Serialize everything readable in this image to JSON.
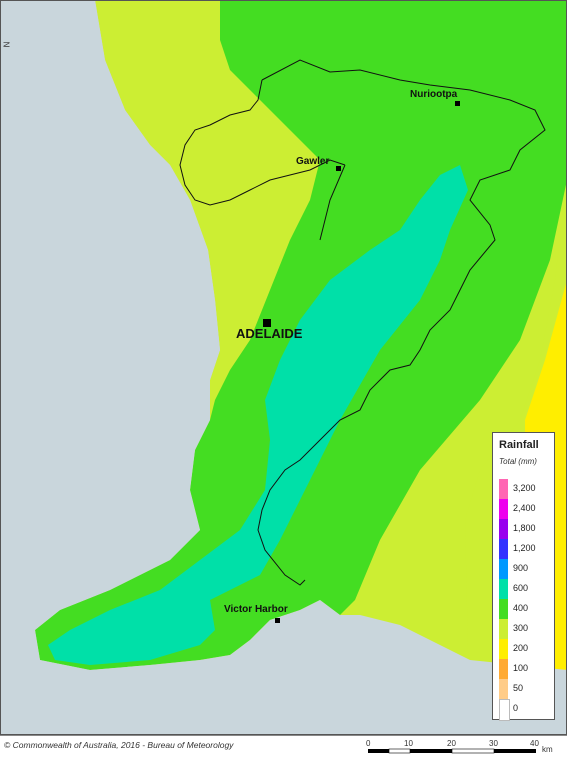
{
  "map": {
    "towns": [
      {
        "name": "Nuriootpa"
      },
      {
        "name": "Gawler"
      },
      {
        "name": "Victor Harbor"
      }
    ],
    "city": {
      "name": "ADELAIDE"
    },
    "north_label": "N"
  },
  "legend": {
    "title": "Rainfall",
    "subtitle": "Total (mm)",
    "classes": [
      {
        "label": "3,200",
        "color": "#ff66b3"
      },
      {
        "label": "2,400",
        "color": "#ee00ee"
      },
      {
        "label": "1,800",
        "color": "#9900ee"
      },
      {
        "label": "1,200",
        "color": "#3333ff"
      },
      {
        "label": "900",
        "color": "#0099ff"
      },
      {
        "label": "600",
        "color": "#00e0a8"
      },
      {
        "label": "400",
        "color": "#44dd22"
      },
      {
        "label": "300",
        "color": "#ccee33"
      },
      {
        "label": "200",
        "color": "#ffee00"
      },
      {
        "label": "100",
        "color": "#ffaa33"
      },
      {
        "label": "50",
        "color": "#ffcc88"
      },
      {
        "label": "0",
        "color": "#ffffff"
      }
    ]
  },
  "footer": {
    "copyright": "© Commonwealth of Australia, 2016 - Bureau of Meteorology",
    "scale_ticks": [
      "0",
      "10",
      "20",
      "30",
      "40"
    ],
    "scale_unit": "km"
  },
  "colors": {
    "sea": "#c9d6dc",
    "zone_300": "#ccee33",
    "zone_400": "#44dd22",
    "zone_600": "#00e0a8",
    "zone_200": "#ffee00"
  }
}
